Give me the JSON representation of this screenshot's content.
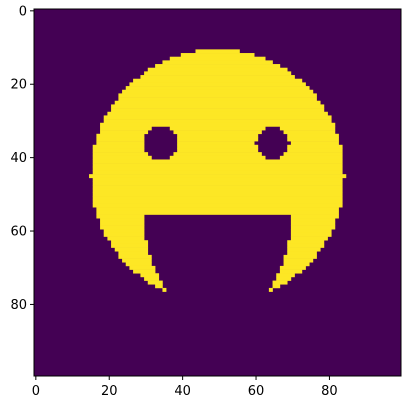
{
  "chart_data": {
    "type": "heatmap",
    "title": "",
    "xlabel": "",
    "ylabel": "",
    "xlim": [
      -0.5,
      99.5
    ],
    "ylim": [
      99.5,
      -0.5
    ],
    "x_ticks": [
      0,
      20,
      40,
      60,
      80
    ],
    "y_ticks": [
      0,
      20,
      40,
      60,
      80
    ],
    "colormap": "viridis",
    "colors": {
      "background": "#440154",
      "foreground": "#fde725"
    },
    "grid": false,
    "image_size": [
      100,
      100
    ],
    "values_description_note": "binary mask: 1 inside face disc (center 50,45 radius ~35) minus eyes and mouth",
    "face": {
      "center_x": 49.5,
      "center_y": 45,
      "radius": 34.5
    },
    "eyes": [
      {
        "center_x": 34,
        "center_y": 36,
        "radius": 4.6
      },
      {
        "center_x": 64.5,
        "center_y": 36,
        "radius": 4.6
      }
    ],
    "mouth": {
      "center_x": 49.5,
      "center_y": 56.5,
      "radius_x": 38,
      "radius_y": 27.5,
      "top_y": 56,
      "x_min": 30.5,
      "x_max": 69.5
    }
  }
}
